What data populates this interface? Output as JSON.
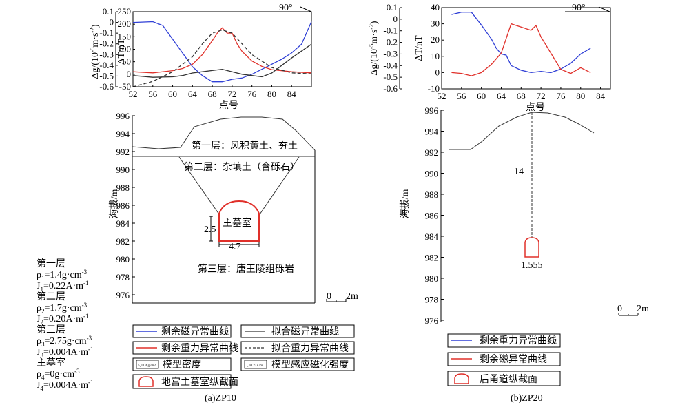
{
  "left_panel": {
    "caption": "(a)ZP10",
    "azimuth": "90°",
    "profile_axis": {
      "ylabel": "海拔/m",
      "yticks": [
        "996",
        "994",
        "992",
        "990",
        "988",
        "986",
        "984",
        "982",
        "980",
        "978",
        "976"
      ]
    },
    "layers": {
      "layer1": "第一层：风积黄土、夯土",
      "layer2": "第二层：杂填土（含砾石）",
      "layer3": "第三层：唐王陵组砾岩",
      "chamber": "主墓室",
      "dim_height": "2.5",
      "dim_width": "4.7"
    },
    "scale_label": "2m",
    "scale_zero": "0",
    "params": [
      {
        "name": "第一层",
        "rho": "=1.4g·cm",
        "J": "=0.22A·m",
        "rho_sub": "1",
        "J_sub": "1"
      },
      {
        "name": "第二层",
        "rho": "=1.7g·cm",
        "J": "=0.20A·m",
        "rho_sub": "2",
        "J_sub": "2"
      },
      {
        "name": "第三层",
        "rho": "=2.75g·cm",
        "J": "=0.004A·m",
        "rho_sub": "3",
        "J_sub": "3"
      },
      {
        "name": "主墓室",
        "rho": "=0g·cm",
        "J": "=0.004A·m",
        "rho_sub": "4",
        "J_sub": "4"
      }
    ],
    "legend": {
      "mag_resid": "剩余磁异常曲线",
      "mag_fit": "拟合磁异常曲线",
      "grav_resid": "剩余重力异常曲线",
      "grav_fit": "拟合重力异常曲线",
      "density": "模型密度",
      "density_icon_text": "ρ₁=1.4 g/cm³",
      "magnetization": "模型感应磁化强度",
      "magnetization_icon_text": "J₁=0.22A/m",
      "section": "地宫主墓室纵截面"
    }
  },
  "right_panel": {
    "caption": "(b)ZP20",
    "azimuth": "90°",
    "profile_axis": {
      "ylabel": "海拔/m",
      "yticks": [
        "996",
        "994",
        "992",
        "990",
        "988",
        "986",
        "984",
        "982",
        "980",
        "978",
        "976"
      ]
    },
    "depth_label": "14",
    "tunnel_label": "1.555",
    "scale_label": "2m",
    "scale_zero": "0",
    "legend": {
      "grav_resid": "剩余重力异常曲线",
      "mag_resid": "剩余磁异常曲线",
      "section": "后甬道纵截面"
    }
  },
  "colors": {
    "magnetic": "#2f3fd6",
    "gravity": "#e0302a",
    "fit": "#333333",
    "profile": "#333333"
  },
  "chart_data": [
    {
      "type": "line",
      "panel": "a",
      "xlabel": "点号",
      "xticks": [
        "52",
        "56",
        "60",
        "64",
        "68",
        "72",
        "76",
        "80",
        "84"
      ],
      "xlim": [
        52,
        88
      ],
      "left_axis": {
        "label_parts": [
          "Δg/(10",
          "m·s",
          ")"
        ],
        "ticks": [
          "0.1",
          "0",
          "-0.1",
          "-0.2",
          "-0.3",
          "-0.4",
          "-0.5",
          "-0.6"
        ],
        "ylim": [
          -0.6,
          0.1
        ]
      },
      "right_axis": {
        "label": "ΔT/nT",
        "ticks": [
          "250",
          "200",
          "150",
          "100",
          "50",
          "0",
          "-50"
        ],
        "ylim": [
          -50,
          250
        ]
      },
      "series": [
        {
          "name": "剩余磁异常曲线",
          "axis": "right",
          "color": "#2f3fd6",
          "x": [
            52,
            56,
            58,
            60,
            62,
            64,
            66,
            68,
            70,
            72,
            74,
            76,
            78,
            80,
            82,
            84,
            86,
            88
          ],
          "y": [
            207,
            210,
            195,
            140,
            85,
            30,
            -5,
            -30,
            -30,
            -20,
            -15,
            0,
            20,
            40,
            60,
            85,
            120,
            210
          ]
        },
        {
          "name": "剩余重力异常曲线",
          "axis": "left",
          "color": "#e0302a",
          "x": [
            52,
            56,
            60,
            62,
            64,
            66,
            68,
            69,
            70,
            71,
            72,
            73,
            74,
            76,
            78,
            80,
            84,
            88
          ],
          "y": [
            -0.46,
            -0.47,
            -0.45,
            -0.43,
            -0.39,
            -0.3,
            -0.17,
            -0.1,
            -0.05,
            -0.1,
            -0.1,
            -0.2,
            -0.27,
            -0.36,
            -0.41,
            -0.44,
            -0.46,
            -0.47
          ]
        },
        {
          "name": "拟合磁异常曲线",
          "axis": "right",
          "color": "#333333",
          "x": [
            52,
            56,
            60,
            62,
            64,
            66,
            68,
            70,
            72,
            74,
            76,
            78,
            80,
            84,
            88
          ],
          "y": [
            -5,
            -12,
            -10,
            -5,
            5,
            10,
            15,
            20,
            10,
            0,
            -5,
            -10,
            5,
            65,
            120
          ]
        },
        {
          "name": "拟合重力异常曲线",
          "axis": "left",
          "color": "#333333",
          "dash": true,
          "x": [
            52,
            56,
            60,
            64,
            66,
            68,
            70,
            72,
            74,
            76,
            80,
            84,
            88
          ],
          "y": [
            -0.6,
            -0.55,
            -0.46,
            -0.32,
            -0.2,
            -0.1,
            -0.07,
            -0.1,
            -0.2,
            -0.3,
            -0.42,
            -0.47,
            -0.48
          ]
        }
      ]
    },
    {
      "type": "line",
      "panel": "b",
      "xlabel": "点号",
      "xticks": [
        "52",
        "56",
        "60",
        "64",
        "68",
        "72",
        "76",
        "80",
        "84"
      ],
      "xlim": [
        52,
        86
      ],
      "left_axis": {
        "label_parts": [
          "Δg/(10",
          "m·s",
          ")"
        ],
        "ticks": [
          "0.1",
          "0",
          "-0.1",
          "-0.2",
          "-0.3",
          "-0.4",
          "-0.5",
          "-0.6"
        ],
        "ylim": [
          -0.6,
          0.1
        ]
      },
      "right_axis": {
        "label": "ΔT/nT",
        "ticks": [
          "40",
          "30",
          "20",
          "10",
          "0",
          "-10"
        ],
        "ylim": [
          -10,
          40
        ]
      },
      "series": [
        {
          "name": "剩余重力异常曲线",
          "axis": "left",
          "color": "#2f3fd6",
          "x": [
            54,
            56,
            58,
            60,
            62,
            63,
            64,
            65,
            66,
            68,
            70,
            72,
            74,
            76,
            78,
            80,
            82
          ],
          "y": [
            0.04,
            0.06,
            0.06,
            -0.05,
            -0.17,
            -0.25,
            -0.3,
            -0.31,
            -0.4,
            -0.44,
            -0.46,
            -0.45,
            -0.46,
            -0.43,
            -0.38,
            -0.3,
            -0.25
          ]
        },
        {
          "name": "剩余磁异常曲线",
          "axis": "right",
          "color": "#e0302a",
          "x": [
            54,
            56,
            58,
            60,
            62,
            64,
            66,
            68,
            70,
            71,
            72,
            74,
            76,
            78,
            80,
            82
          ],
          "y": [
            0,
            -0.5,
            -2,
            0,
            5,
            12,
            30,
            28,
            26,
            29,
            22,
            12,
            2,
            -0.5,
            3,
            0
          ]
        }
      ]
    }
  ]
}
